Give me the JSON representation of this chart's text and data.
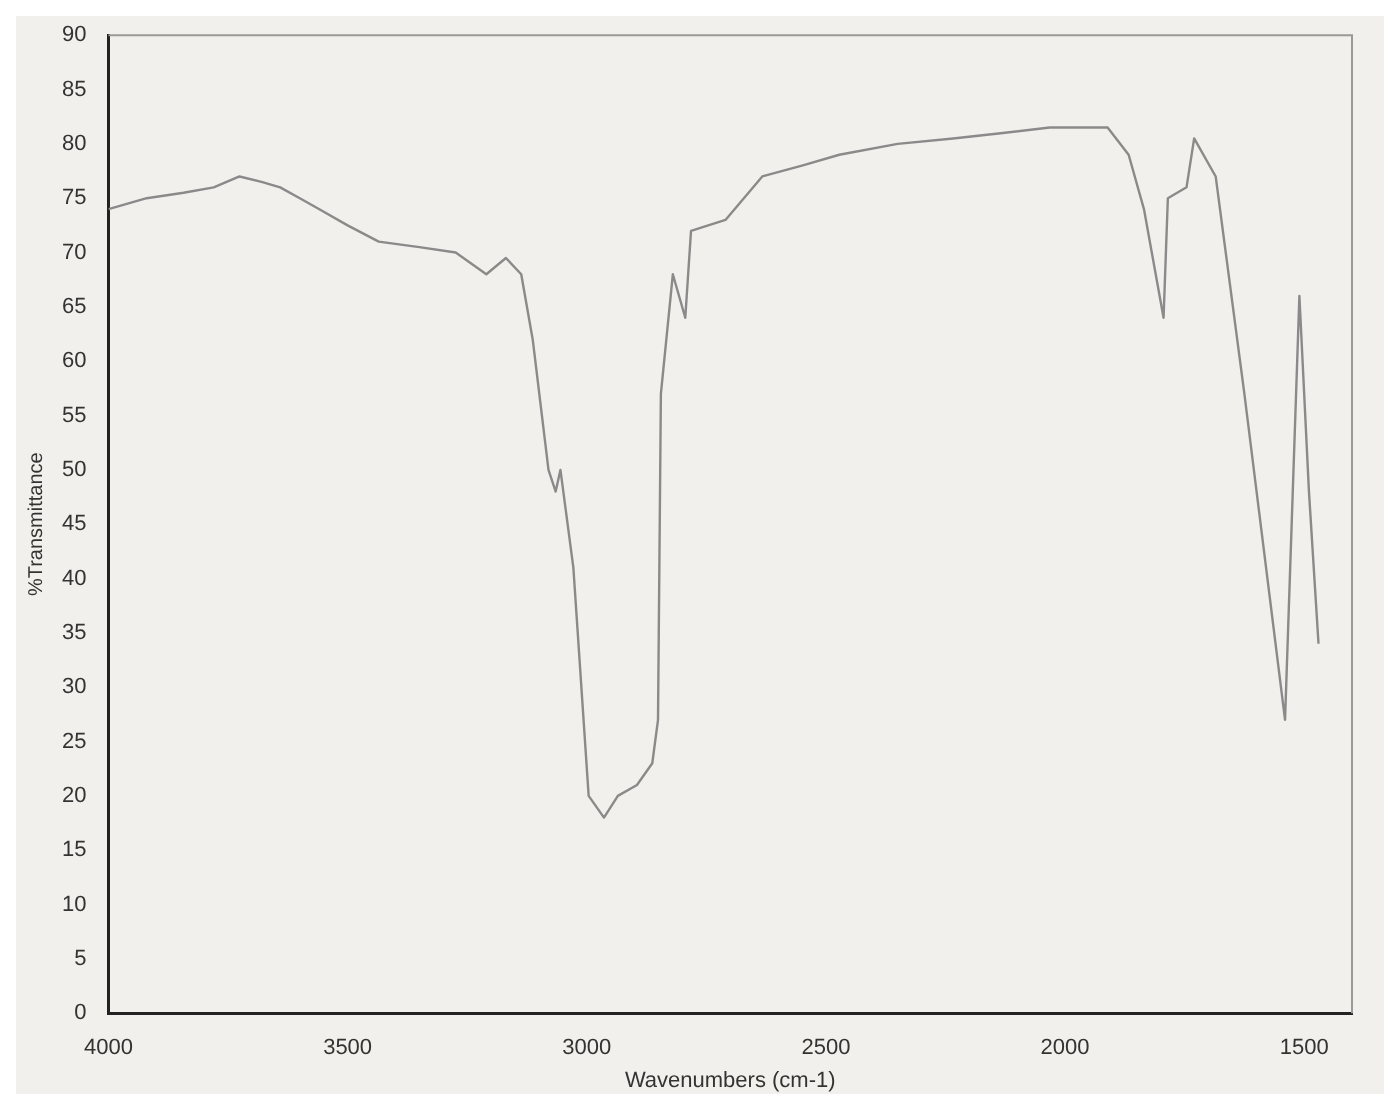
{
  "chart_data": {
    "type": "line",
    "xlabel": "Wavenumbers (cm-1)",
    "ylabel": "%Transmittance",
    "xlim": [
      4000,
      1400
    ],
    "xticks": [
      4000,
      3500,
      3000,
      2500,
      2000,
      1500
    ],
    "ylim": [
      0,
      90
    ],
    "yticks": [
      0,
      5,
      10,
      15,
      20,
      25,
      30,
      35,
      40,
      45,
      50,
      55,
      60,
      65,
      70,
      75,
      80,
      85,
      90
    ],
    "grid": false,
    "legend": false,
    "marker": "none",
    "line_style": "solid",
    "series": [
      {
        "color": "#8a8a8a",
        "x": [
          4000,
          3920,
          3843,
          3780,
          3726,
          3680,
          3641,
          3600,
          3560,
          3500,
          3435,
          3350,
          3274,
          3210,
          3169,
          3137,
          3113,
          3080,
          3065,
          3055,
          3028,
          2996,
          2964,
          2935,
          2895,
          2863,
          2851,
          2845,
          2820,
          2794,
          2782,
          2710,
          2633,
          2550,
          2472,
          2350,
          2234,
          2130,
          2032,
          1960,
          1911,
          1867,
          1835,
          1794,
          1785,
          1746,
          1730,
          1685,
          1625,
          1540,
          1510,
          1490,
          1470
        ],
        "values": [
          74,
          75,
          75.5,
          76,
          77,
          76.5,
          76,
          75,
          74,
          72.5,
          71,
          70.5,
          70,
          68,
          69.5,
          68,
          62,
          50,
          48,
          50,
          41,
          20,
          18,
          20,
          21,
          23,
          27,
          57,
          68,
          64,
          72,
          73,
          77,
          78,
          79,
          80,
          80.5,
          81,
          81.5,
          81.5,
          81.5,
          79,
          74,
          64,
          75,
          76,
          80.5,
          77,
          57,
          27,
          66,
          48,
          34
        ]
      }
    ]
  }
}
